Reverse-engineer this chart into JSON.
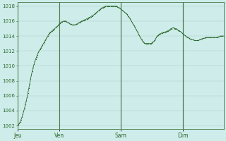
{
  "background_color": "#ceecea",
  "plot_bg_color": "#ceecea",
  "line_color": "#2d6a2d",
  "marker_color": "#2d6a2d",
  "grid_color": "#a8c8c4",
  "vline_color": "#4a7a4a",
  "tick_label_color": "#2d6a2d",
  "ylim": [
    1001.5,
    1018.5
  ],
  "yticks": [
    1002,
    1004,
    1006,
    1008,
    1010,
    1012,
    1014,
    1016,
    1018
  ],
  "day_labels": [
    "Jeu",
    "Ven",
    "Sam",
    "Dim"
  ],
  "day_positions": [
    0,
    48,
    120,
    192
  ],
  "total_points": 240,
  "pressure_data": [
    1002.0,
    1002.1,
    1002.3,
    1002.5,
    1002.8,
    1003.1,
    1003.5,
    1003.9,
    1004.3,
    1004.8,
    1005.3,
    1005.8,
    1006.4,
    1007.0,
    1007.6,
    1008.2,
    1008.8,
    1009.3,
    1009.8,
    1010.2,
    1010.6,
    1010.9,
    1011.2,
    1011.5,
    1011.8,
    1012.0,
    1012.2,
    1012.4,
    1012.6,
    1012.8,
    1013.0,
    1013.2,
    1013.4,
    1013.6,
    1013.8,
    1014.0,
    1014.2,
    1014.4,
    1014.5,
    1014.6,
    1014.7,
    1014.8,
    1014.9,
    1015.0,
    1015.1,
    1015.2,
    1015.3,
    1015.4,
    1015.6,
    1015.7,
    1015.8,
    1015.9,
    1015.9,
    1016.0,
    1016.0,
    1016.0,
    1016.0,
    1015.9,
    1015.8,
    1015.8,
    1015.7,
    1015.6,
    1015.6,
    1015.5,
    1015.5,
    1015.5,
    1015.5,
    1015.5,
    1015.6,
    1015.6,
    1015.7,
    1015.8,
    1015.8,
    1015.9,
    1016.0,
    1016.0,
    1016.1,
    1016.1,
    1016.2,
    1016.2,
    1016.3,
    1016.3,
    1016.4,
    1016.5,
    1016.5,
    1016.6,
    1016.7,
    1016.7,
    1016.8,
    1016.9,
    1017.0,
    1017.1,
    1017.2,
    1017.3,
    1017.4,
    1017.5,
    1017.6,
    1017.7,
    1017.8,
    1017.8,
    1017.9,
    1017.9,
    1018.0,
    1018.0,
    1018.0,
    1018.0,
    1018.0,
    1018.0,
    1018.0,
    1018.0,
    1018.0,
    1018.0,
    1018.0,
    1018.0,
    1018.0,
    1018.0,
    1017.9,
    1017.8,
    1017.8,
    1017.7,
    1017.6,
    1017.5,
    1017.4,
    1017.3,
    1017.2,
    1017.1,
    1017.0,
    1016.9,
    1016.7,
    1016.6,
    1016.4,
    1016.2,
    1016.0,
    1015.8,
    1015.6,
    1015.4,
    1015.2,
    1015.0,
    1014.8,
    1014.6,
    1014.3,
    1014.1,
    1013.9,
    1013.7,
    1013.5,
    1013.3,
    1013.2,
    1013.1,
    1013.0,
    1013.0,
    1013.0,
    1013.0,
    1013.0,
    1013.0,
    1013.0,
    1013.0,
    1013.1,
    1013.2,
    1013.3,
    1013.4,
    1013.6,
    1013.8,
    1014.0,
    1014.1,
    1014.2,
    1014.3,
    1014.3,
    1014.4,
    1014.4,
    1014.5,
    1014.5,
    1014.5,
    1014.6,
    1014.6,
    1014.7,
    1014.7,
    1014.8,
    1014.9,
    1015.0,
    1015.0,
    1015.1,
    1015.1,
    1015.0,
    1015.0,
    1015.0,
    1014.9,
    1014.8,
    1014.7,
    1014.7,
    1014.6,
    1014.5,
    1014.4,
    1014.3,
    1014.2,
    1014.1,
    1014.0,
    1013.9,
    1013.8,
    1013.8,
    1013.7,
    1013.6,
    1013.6,
    1013.5,
    1013.5,
    1013.5,
    1013.4,
    1013.4,
    1013.4,
    1013.4,
    1013.4,
    1013.4,
    1013.5,
    1013.5,
    1013.6,
    1013.6,
    1013.7,
    1013.7,
    1013.7,
    1013.8,
    1013.8,
    1013.8,
    1013.8,
    1013.8,
    1013.8,
    1013.8,
    1013.8,
    1013.8,
    1013.8,
    1013.8,
    1013.8,
    1013.8,
    1013.8,
    1013.8,
    1013.9,
    1013.9,
    1014.0,
    1014.0,
    1014.0,
    1014.0,
    1014.0
  ]
}
